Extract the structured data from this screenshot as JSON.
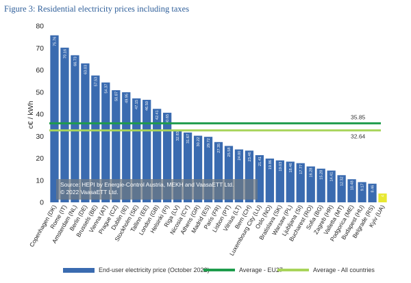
{
  "figure_title": "Figure 3: Residential electricity prices including taxes",
  "source": {
    "line1": "Source: HEPI by Energie-Control Austria, MEKH and VaasaETT Ltd.",
    "line2": "© 2022 VaasaETT Ltd."
  },
  "colors": {
    "bar": "#3a6bb0",
    "bar_last": "#e8e832",
    "eu27": "#1e9c4c",
    "all": "#a8d45a"
  },
  "legend": {
    "bars": "End-user electricity price (October 2022)",
    "eu27": "Average - EU27",
    "all": "Average - All countries"
  },
  "chart_data": {
    "type": "bar",
    "ylabel": "c€ / kWh",
    "ylim": [
      0,
      80
    ],
    "yticks": [
      "0",
      "10",
      "20",
      "30",
      "40",
      "50",
      "60",
      "70",
      "80"
    ],
    "grid": false,
    "legend_position": "bottom",
    "categories": [
      "Copenhagen (DK)",
      "Rome (IT)",
      "Amsterdam (NL)",
      "Berlin (DE)",
      "Brussels (BE)",
      "Vienna (AT)",
      "Prague (CZ)",
      "Dublin (IE)",
      "Stockholm (SE)",
      "Tallinn (EE)",
      "London (GB)",
      "Helsinki (FI)",
      "Riga (LV)",
      "Nicosia (CY)",
      "Athens (GR)",
      "Madrid (ES)",
      "Paris (FR)",
      "Lisbon (PT)",
      "Vilnius (LT)",
      "Bern (CH)",
      "Luxembourg City (LU)",
      "Oslo (NO)",
      "Bratislava (SK)",
      "Warsaw (PL)",
      "Ljubljana (SI)",
      "Bucharest (RO)",
      "Sofia (BG)",
      "Zagreb (HR)",
      "Valletta (MT)",
      "Podgorica (ME)",
      "Budapest (HU)",
      "Belgrade (RS)",
      "Kyiv (UA)"
    ],
    "values": [
      75.76,
      70.16,
      66.73,
      63.03,
      57.53,
      54.37,
      50.87,
      49.95,
      47.15,
      46.5,
      42.41,
      40.65,
      32.83,
      31.67,
      30.22,
      29.72,
      27.35,
      25.58,
      24.0,
      23.46,
      21.41,
      19.86,
      19.03,
      18.46,
      17.77,
      16.28,
      15.28,
      14.41,
      12.32,
      10.48,
      9.17,
      8.46,
      4.0
    ],
    "value_labels": [
      "75.76",
      "70.16",
      "66.73",
      "63.03",
      "57.53",
      "54.37",
      "50.87",
      "49.95",
      "47.15",
      "46.50",
      "42.41",
      "40.65",
      "32.83",
      "31.67",
      "30.22",
      "29.72",
      "27.35",
      "25.58",
      "24.00",
      "23.46",
      "21.41",
      "19.86",
      "19.03",
      "18.46",
      "17.77",
      "16.28",
      "15.28",
      "14.41",
      "12.32",
      "10.48",
      "9.17",
      "8.46",
      "4"
    ],
    "series": [
      {
        "name": "End-user electricity price (October 2022)",
        "type": "bar"
      },
      {
        "name": "Average - EU27",
        "type": "line",
        "value": 35.85,
        "label": "35.85"
      },
      {
        "name": "Average - All countries",
        "type": "line",
        "value": 32.64,
        "label": "32.64"
      }
    ]
  }
}
